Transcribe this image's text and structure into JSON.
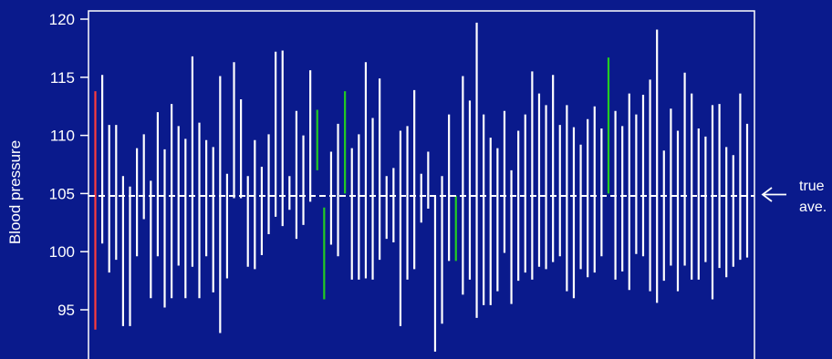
{
  "chart_data": {
    "type": "interval",
    "title": "",
    "xlabel": "",
    "ylabel": "Blood pressure",
    "ylim": [
      90.5,
      121.5
    ],
    "yticks": [
      95,
      100,
      105,
      110,
      115,
      120
    ],
    "reference_line": {
      "value": 104.8,
      "label_lines": [
        "true",
        "ave."
      ]
    },
    "colors": {
      "background": "#0a1a8c",
      "interval": "#ffffff",
      "first_interval": "#ff3b3b",
      "missed_interval": "#22cc22",
      "reference": "#ffffff"
    },
    "intervals": [
      {
        "lower": 93.3,
        "upper": 113.8,
        "type": "first"
      },
      {
        "lower": 100.7,
        "upper": 115.2
      },
      {
        "lower": 98.2,
        "upper": 110.9
      },
      {
        "lower": 99.3,
        "upper": 110.9
      },
      {
        "lower": 93.6,
        "upper": 106.5
      },
      {
        "lower": 93.6,
        "upper": 105.6
      },
      {
        "lower": 99.6,
        "upper": 108.9
      },
      {
        "lower": 102.8,
        "upper": 110.1
      },
      {
        "lower": 96.0,
        "upper": 106.1
      },
      {
        "lower": 99.6,
        "upper": 112.0
      },
      {
        "lower": 95.2,
        "upper": 108.8
      },
      {
        "lower": 96.0,
        "upper": 112.7
      },
      {
        "lower": 98.8,
        "upper": 110.8
      },
      {
        "lower": 96.0,
        "upper": 109.7
      },
      {
        "lower": 98.7,
        "upper": 116.8
      },
      {
        "lower": 96.0,
        "upper": 111.1
      },
      {
        "lower": 99.6,
        "upper": 109.6
      },
      {
        "lower": 96.5,
        "upper": 109.0
      },
      {
        "lower": 93.0,
        "upper": 115.1
      },
      {
        "lower": 97.7,
        "upper": 106.7
      },
      {
        "lower": 104.6,
        "upper": 116.3
      },
      {
        "lower": 104.6,
        "upper": 113.1
      },
      {
        "lower": 98.7,
        "upper": 106.5
      },
      {
        "lower": 98.5,
        "upper": 109.6
      },
      {
        "lower": 99.7,
        "upper": 107.3
      },
      {
        "lower": 101.5,
        "upper": 110.1
      },
      {
        "lower": 103.0,
        "upper": 117.2
      },
      {
        "lower": 102.2,
        "upper": 117.3
      },
      {
        "lower": 103.6,
        "upper": 106.5
      },
      {
        "lower": 101.1,
        "upper": 112.1
      },
      {
        "lower": 102.3,
        "upper": 110.0
      },
      {
        "lower": 104.3,
        "upper": 115.6
      },
      {
        "lower": 107.0,
        "upper": 112.2,
        "type": "missed"
      },
      {
        "lower": 95.9,
        "upper": 103.8,
        "type": "missed"
      },
      {
        "lower": 100.6,
        "upper": 108.6
      },
      {
        "lower": 99.6,
        "upper": 111.0
      },
      {
        "lower": 105.0,
        "upper": 113.8,
        "type": "missed"
      },
      {
        "lower": 97.6,
        "upper": 108.9
      },
      {
        "lower": 97.6,
        "upper": 110.1
      },
      {
        "lower": 97.7,
        "upper": 116.3
      },
      {
        "lower": 97.6,
        "upper": 111.5
      },
      {
        "lower": 99.3,
        "upper": 114.9
      },
      {
        "lower": 101.1,
        "upper": 106.5
      },
      {
        "lower": 100.8,
        "upper": 107.2
      },
      {
        "lower": 93.6,
        "upper": 110.4
      },
      {
        "lower": 97.6,
        "upper": 110.8
      },
      {
        "lower": 98.5,
        "upper": 113.9
      },
      {
        "lower": 102.5,
        "upper": 106.7
      },
      {
        "lower": 103.7,
        "upper": 108.6
      },
      {
        "lower": 91.4,
        "upper": 104.8
      },
      {
        "lower": 93.8,
        "upper": 106.5
      },
      {
        "lower": 99.2,
        "upper": 111.8
      },
      {
        "lower": 99.2,
        "upper": 104.8,
        "type": "missed"
      },
      {
        "lower": 96.3,
        "upper": 115.1
      },
      {
        "lower": 97.6,
        "upper": 113.0
      },
      {
        "lower": 94.3,
        "upper": 119.7
      },
      {
        "lower": 95.4,
        "upper": 111.8
      },
      {
        "lower": 95.4,
        "upper": 109.8
      },
      {
        "lower": 96.6,
        "upper": 108.9
      },
      {
        "lower": 99.9,
        "upper": 112.1
      },
      {
        "lower": 95.5,
        "upper": 107.0
      },
      {
        "lower": 97.5,
        "upper": 110.4
      },
      {
        "lower": 98.2,
        "upper": 111.8
      },
      {
        "lower": 97.6,
        "upper": 115.5
      },
      {
        "lower": 98.7,
        "upper": 113.6
      },
      {
        "lower": 98.5,
        "upper": 112.6
      },
      {
        "lower": 99.1,
        "upper": 115.2
      },
      {
        "lower": 99.6,
        "upper": 110.9
      },
      {
        "lower": 96.6,
        "upper": 112.6
      },
      {
        "lower": 96.0,
        "upper": 110.7
      },
      {
        "lower": 98.5,
        "upper": 109.2
      },
      {
        "lower": 97.8,
        "upper": 111.4
      },
      {
        "lower": 98.2,
        "upper": 112.5
      },
      {
        "lower": 99.6,
        "upper": 110.6
      },
      {
        "lower": 105.0,
        "upper": 116.7,
        "type": "missed"
      },
      {
        "lower": 97.6,
        "upper": 112.1
      },
      {
        "lower": 98.3,
        "upper": 110.8
      },
      {
        "lower": 96.7,
        "upper": 113.6
      },
      {
        "lower": 99.8,
        "upper": 111.8
      },
      {
        "lower": 99.6,
        "upper": 113.5
      },
      {
        "lower": 96.6,
        "upper": 114.8
      },
      {
        "lower": 95.6,
        "upper": 119.1
      },
      {
        "lower": 97.5,
        "upper": 108.7
      },
      {
        "lower": 98.8,
        "upper": 112.3
      },
      {
        "lower": 96.6,
        "upper": 110.4
      },
      {
        "lower": 98.8,
        "upper": 115.4
      },
      {
        "lower": 97.6,
        "upper": 113.6
      },
      {
        "lower": 97.6,
        "upper": 110.6
      },
      {
        "lower": 99.1,
        "upper": 109.9
      },
      {
        "lower": 95.9,
        "upper": 112.6
      },
      {
        "lower": 98.6,
        "upper": 112.7
      },
      {
        "lower": 97.8,
        "upper": 109.0
      },
      {
        "lower": 98.7,
        "upper": 108.3
      },
      {
        "lower": 99.3,
        "upper": 113.6
      },
      {
        "lower": 99.5,
        "upper": 111.0
      }
    ]
  }
}
